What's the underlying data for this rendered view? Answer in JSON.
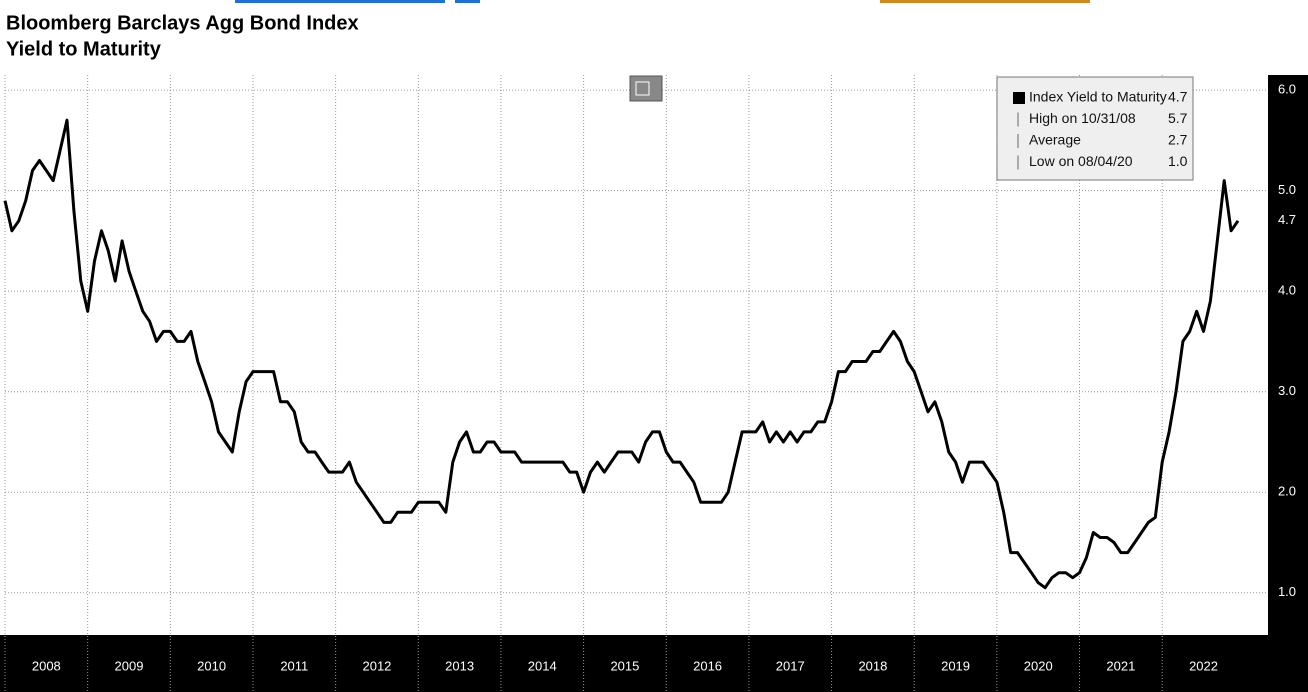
{
  "chart_data": {
    "type": "line",
    "title": "Bloomberg Barclays Agg Bond Index",
    "subtitle": "Yield to Maturity",
    "x": [
      2008,
      2008.083,
      2008.167,
      2008.25,
      2008.333,
      2008.417,
      2008.5,
      2008.583,
      2008.667,
      2008.75,
      2008.833,
      2008.917,
      2009,
      2009.083,
      2009.167,
      2009.25,
      2009.333,
      2009.417,
      2009.5,
      2009.583,
      2009.667,
      2009.75,
      2009.833,
      2009.917,
      2010,
      2010.083,
      2010.167,
      2010.25,
      2010.333,
      2010.417,
      2010.5,
      2010.583,
      2010.667,
      2010.75,
      2010.833,
      2010.917,
      2011,
      2011.083,
      2011.167,
      2011.25,
      2011.333,
      2011.417,
      2011.5,
      2011.583,
      2011.667,
      2011.75,
      2011.833,
      2011.917,
      2012,
      2012.083,
      2012.167,
      2012.25,
      2012.333,
      2012.417,
      2012.5,
      2012.583,
      2012.667,
      2012.75,
      2012.833,
      2012.917,
      2013,
      2013.083,
      2013.167,
      2013.25,
      2013.333,
      2013.417,
      2013.5,
      2013.583,
      2013.667,
      2013.75,
      2013.833,
      2013.917,
      2014,
      2014.083,
      2014.167,
      2014.25,
      2014.333,
      2014.417,
      2014.5,
      2014.583,
      2014.667,
      2014.75,
      2014.833,
      2014.917,
      2015,
      2015.083,
      2015.167,
      2015.25,
      2015.333,
      2015.417,
      2015.5,
      2015.583,
      2015.667,
      2015.75,
      2015.833,
      2015.917,
      2016,
      2016.083,
      2016.167,
      2016.25,
      2016.333,
      2016.417,
      2016.5,
      2016.583,
      2016.667,
      2016.75,
      2016.833,
      2016.917,
      2017,
      2017.083,
      2017.167,
      2017.25,
      2017.333,
      2017.417,
      2017.5,
      2017.583,
      2017.667,
      2017.75,
      2017.833,
      2017.917,
      2018,
      2018.083,
      2018.167,
      2018.25,
      2018.333,
      2018.417,
      2018.5,
      2018.583,
      2018.667,
      2018.75,
      2018.833,
      2018.917,
      2019,
      2019.083,
      2019.167,
      2019.25,
      2019.333,
      2019.417,
      2019.5,
      2019.583,
      2019.667,
      2019.75,
      2019.833,
      2019.917,
      2020,
      2020.083,
      2020.167,
      2020.25,
      2020.333,
      2020.417,
      2020.5,
      2020.583,
      2020.667,
      2020.75,
      2020.833,
      2020.917,
      2021,
      2021.083,
      2021.167,
      2021.25,
      2021.333,
      2021.417,
      2021.5,
      2021.583,
      2021.667,
      2021.75,
      2021.833,
      2021.917,
      2022,
      2022.083,
      2022.167,
      2022.25,
      2022.333,
      2022.417,
      2022.5,
      2022.583,
      2022.667,
      2022.75,
      2022.833,
      2022.917
    ],
    "series": [
      {
        "name": "Index Yield to Maturity",
        "color": "#000000",
        "values": [
          4.9,
          4.6,
          4.7,
          4.9,
          5.2,
          5.3,
          5.2,
          5.1,
          5.4,
          5.7,
          4.8,
          4.1,
          3.8,
          4.3,
          4.6,
          4.4,
          4.1,
          4.5,
          4.2,
          4.0,
          3.8,
          3.7,
          3.5,
          3.6,
          3.6,
          3.5,
          3.5,
          3.6,
          3.3,
          3.1,
          2.9,
          2.6,
          2.5,
          2.4,
          2.8,
          3.1,
          3.2,
          3.2,
          3.2,
          3.2,
          2.9,
          2.9,
          2.8,
          2.5,
          2.4,
          2.4,
          2.3,
          2.2,
          2.2,
          2.2,
          2.3,
          2.1,
          2.0,
          1.9,
          1.8,
          1.7,
          1.7,
          1.8,
          1.8,
          1.8,
          1.9,
          1.9,
          1.9,
          1.9,
          1.8,
          2.3,
          2.5,
          2.6,
          2.4,
          2.4,
          2.5,
          2.5,
          2.4,
          2.4,
          2.4,
          2.3,
          2.3,
          2.3,
          2.3,
          2.3,
          2.3,
          2.3,
          2.2,
          2.2,
          2.0,
          2.2,
          2.3,
          2.2,
          2.3,
          2.4,
          2.4,
          2.4,
          2.3,
          2.5,
          2.6,
          2.6,
          2.4,
          2.3,
          2.3,
          2.2,
          2.1,
          1.9,
          1.9,
          1.9,
          1.9,
          2.0,
          2.3,
          2.6,
          2.6,
          2.6,
          2.7,
          2.5,
          2.6,
          2.5,
          2.6,
          2.5,
          2.6,
          2.6,
          2.7,
          2.7,
          2.9,
          3.2,
          3.2,
          3.3,
          3.3,
          3.3,
          3.4,
          3.4,
          3.5,
          3.6,
          3.5,
          3.3,
          3.2,
          3.0,
          2.8,
          2.9,
          2.7,
          2.4,
          2.3,
          2.1,
          2.3,
          2.3,
          2.3,
          2.2,
          2.1,
          1.8,
          1.4,
          1.4,
          1.3,
          1.2,
          1.1,
          1.05,
          1.15,
          1.2,
          1.2,
          1.15,
          1.2,
          1.35,
          1.6,
          1.55,
          1.55,
          1.5,
          1.4,
          1.4,
          1.5,
          1.6,
          1.7,
          1.75,
          2.3,
          2.6,
          3.0,
          3.5,
          3.6,
          3.8,
          3.6,
          3.9,
          4.5,
          5.1,
          4.6,
          4.7
        ]
      }
    ],
    "last_value_label": "4.7",
    "xlim": [
      2008,
      2023.28
    ],
    "xticks": [
      {
        "value": 2008,
        "label": "2008"
      },
      {
        "value": 2009,
        "label": "2009"
      },
      {
        "value": 2010,
        "label": "2010"
      },
      {
        "value": 2011,
        "label": "2011"
      },
      {
        "value": 2012,
        "label": "2012"
      },
      {
        "value": 2013,
        "label": "2013"
      },
      {
        "value": 2014,
        "label": "2014"
      },
      {
        "value": 2015,
        "label": "2015"
      },
      {
        "value": 2016,
        "label": "2016"
      },
      {
        "value": 2017,
        "label": "2017"
      },
      {
        "value": 2018,
        "label": "2018"
      },
      {
        "value": 2019,
        "label": "2019"
      },
      {
        "value": 2020,
        "label": "2020"
      },
      {
        "value": 2021,
        "label": "2021"
      },
      {
        "value": 2022,
        "label": "2022"
      }
    ],
    "ylim": [
      0.58,
      6.15
    ],
    "yticks": [
      {
        "value": 1,
        "label": "1.0"
      },
      {
        "value": 2,
        "label": "2.0"
      },
      {
        "value": 3,
        "label": "3.0"
      },
      {
        "value": 4,
        "label": "4.0"
      },
      {
        "value": 5,
        "label": "5.0"
      },
      {
        "value": 6,
        "label": "6.0"
      }
    ],
    "grid": true,
    "legend": {
      "position": "upper right",
      "rows": [
        {
          "label": "Index Yield to Maturity",
          "value": "4.7"
        },
        {
          "label": "High on 10/31/08",
          "value": "5.7"
        },
        {
          "label": "Average",
          "value": "2.7"
        },
        {
          "label": "Low on 08/04/20",
          "value": "1.0"
        }
      ]
    }
  }
}
